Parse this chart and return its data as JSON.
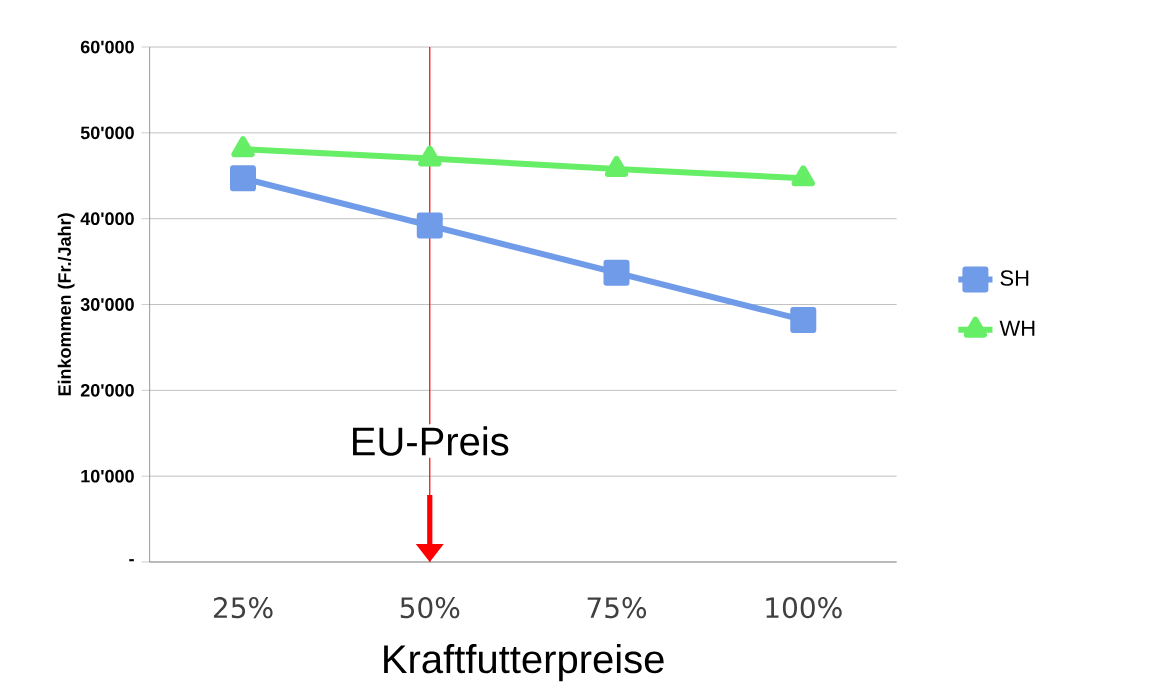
{
  "chart_data": {
    "type": "line",
    "xlabel": "Kraftfutterpreise",
    "ylabel": "Einkommen (Fr./Jahr)",
    "categories": [
      "25%",
      "50%",
      "75%",
      "100%"
    ],
    "series": [
      {
        "name": "SH",
        "color": "#6f9be8",
        "marker": "square",
        "values": [
          44700,
          39200,
          33700,
          28200
        ]
      },
      {
        "name": "WH",
        "color": "#66ee66",
        "marker": "triangle",
        "values": [
          48100,
          47000,
          45800,
          44700
        ]
      }
    ],
    "ylim": [
      0,
      60000
    ],
    "yticks": [
      {
        "value": 0,
        "label": "-"
      },
      {
        "value": 10000,
        "label": "10'000"
      },
      {
        "value": 20000,
        "label": "20'000"
      },
      {
        "value": 30000,
        "label": "30'000"
      },
      {
        "value": 40000,
        "label": "40'000"
      },
      {
        "value": 50000,
        "label": "50'000"
      },
      {
        "value": 60000,
        "label": "60'000"
      }
    ],
    "grid": "y",
    "legend": "right",
    "ref_lines": [
      {
        "axis": "x",
        "value": "50%",
        "label": "EU-Preis",
        "color": "#ff0000"
      }
    ]
  }
}
